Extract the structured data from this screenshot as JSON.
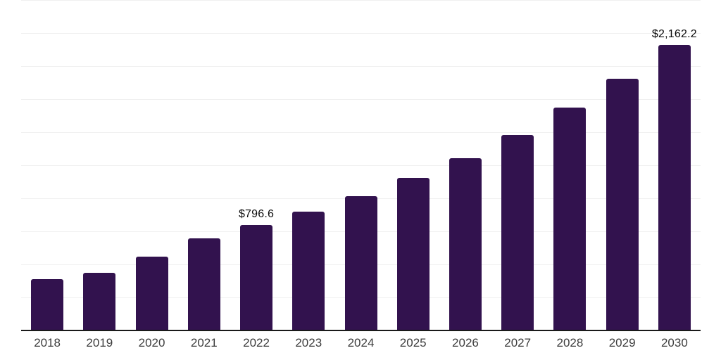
{
  "chart_data": {
    "type": "bar",
    "title": "",
    "xlabel": "",
    "ylabel": "",
    "categories": [
      "2018",
      "2019",
      "2020",
      "2021",
      "2022",
      "2023",
      "2024",
      "2025",
      "2026",
      "2027",
      "2028",
      "2029",
      "2030"
    ],
    "values": [
      391,
      436,
      558,
      697,
      796.6,
      899,
      1016,
      1154,
      1303,
      1479,
      1686,
      1904,
      2162.2
    ],
    "data_labels": {
      "2022": "$796.6",
      "2030": "$2,162.2"
    },
    "ylim": [
      0,
      2500
    ],
    "gridline_step": 250,
    "grid": true,
    "legend": false,
    "bar_color": "#32124e",
    "grid_color": "#f0f0f0",
    "axis_color": "#1a1a1a",
    "tick_label_color": "#3d3d3d",
    "data_label_color": "#0a0a0a",
    "background_color": "#ffffff"
  }
}
